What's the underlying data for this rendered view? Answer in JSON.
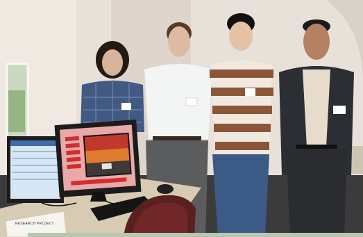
{
  "scene": {
    "description_none": "",
    "people_count": 4,
    "sign_text": "RESEARCH PROJECT",
    "monitor_title": "",
    "colors": {
      "wall": "#e8e3dc",
      "carpet": "#3b3b3c",
      "desk": "#d8cbb3",
      "chair": "#5a1f1f",
      "monitor_bezel": "#1c1c1c",
      "striped_shirt_brown": "#8a5637",
      "striped_shirt_white": "#efe9df",
      "jeans": "#3c5a86",
      "suit": "#2b2f33",
      "dress_shirt": "#e7dbcc",
      "plaid_shirt": "#425a83",
      "white_shirt": "#f3f4f4",
      "gray_pants": "#5b5c5e"
    },
    "icons": {
      "sign": "placard-icon",
      "monitor": "monitor-icon",
      "keyboard": "keyboard-icon",
      "mouse": "mouse-icon",
      "chair": "chair-icon"
    }
  }
}
